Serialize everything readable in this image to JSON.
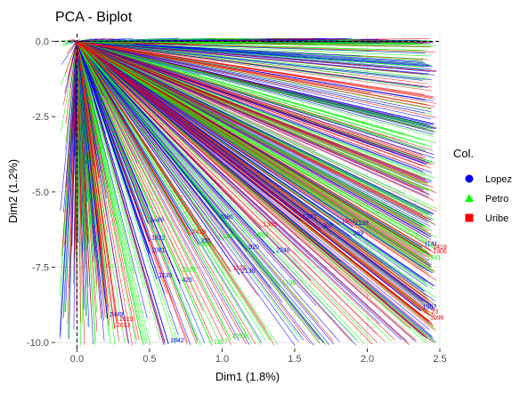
{
  "chart_data": {
    "type": "scatter",
    "title": "PCA - Biplot",
    "xlabel": "Dim1 (1.8%)",
    "ylabel": "Dim2 (1.2%)",
    "xlim": [
      -0.15,
      2.5
    ],
    "ylim": [
      -10.2,
      0.25
    ],
    "x_ticks": [
      0.0,
      0.5,
      1.0,
      1.5,
      2.0,
      2.5
    ],
    "x_tick_labels": [
      "0.0",
      "0.5",
      "1.0",
      "1.5",
      "2.0",
      "2.5"
    ],
    "y_ticks": [
      0.0,
      -2.5,
      -5.0,
      -7.5,
      -10.0
    ],
    "y_tick_labels": [
      "0.0",
      "-2.5",
      "-5.0",
      "-7.5",
      "-10.0"
    ],
    "grid": true,
    "reference_lines": {
      "x": 0,
      "y": 0,
      "style": "dashed"
    },
    "legend": {
      "title": "Col.",
      "position": "right",
      "entries": [
        {
          "label": "Lopez",
          "color": "#0000ff",
          "shape": "circle"
        },
        {
          "label": "Petro",
          "color": "#00ff00",
          "shape": "triangle"
        },
        {
          "label": "Uribe",
          "color": "#ff0000",
          "shape": "square"
        }
      ]
    },
    "series": [
      {
        "name": "Lopez",
        "color": "#0000ff",
        "points": [
          {
            "label": "1997",
            "x": 2.37,
            "y": -8.95
          },
          {
            "label": "1141",
            "x": 2.38,
            "y": -6.85
          },
          {
            "label": "2130",
            "x": 1.12,
            "y": -7.75
          },
          {
            "label": "1139",
            "x": 0.55,
            "y": -7.9
          },
          {
            "label": "425",
            "x": 0.71,
            "y": -8.05
          },
          {
            "label": "1822",
            "x": 0.5,
            "y": -6.65
          },
          {
            "label": "1081",
            "x": 0.5,
            "y": -7.05
          },
          {
            "label": "920",
            "x": 1.17,
            "y": -6.95
          },
          {
            "label": "389",
            "x": 1.89,
            "y": -6.5
          },
          {
            "label": "2246",
            "x": 1.36,
            "y": -7.05
          },
          {
            "label": "2449",
            "x": 0.21,
            "y": -9.2
          },
          {
            "label": "1842",
            "x": 0.63,
            "y": -10.05
          },
          {
            "label": "2139",
            "x": 1.9,
            "y": -6.15
          },
          {
            "label": "1283",
            "x": 1.54,
            "y": -5.95
          },
          {
            "label": "907",
            "x": 1.68,
            "y": -6.25
          },
          {
            "label": "2086",
            "x": 0.97,
            "y": -5.95
          },
          {
            "label": "355",
            "x": 0.84,
            "y": -6.75
          },
          {
            "label": "1446",
            "x": 0.49,
            "y": -6.05
          }
        ]
      },
      {
        "name": "Petro",
        "color": "#00ff00",
        "points": [
          {
            "label": "1796",
            "x": 1.4,
            "y": -8.15
          },
          {
            "label": "2265",
            "x": 1.06,
            "y": -9.9
          },
          {
            "label": "1207",
            "x": 0.93,
            "y": -10.1
          },
          {
            "label": "2526",
            "x": 0.71,
            "y": -7.7
          },
          {
            "label": "1841",
            "x": 2.4,
            "y": -7.3
          },
          {
            "label": "1369",
            "x": 0.99,
            "y": -6.6
          },
          {
            "label": "1900",
            "x": 0.82,
            "y": -6.85
          },
          {
            "label": "1588",
            "x": 1.21,
            "y": -6.55
          }
        ]
      },
      {
        "name": "Uribe",
        "color": "#ff0000",
        "points": [
          {
            "label": "23",
            "x": 2.43,
            "y": -9.1
          },
          {
            "label": "1096",
            "x": 2.42,
            "y": -9.3
          },
          {
            "label": "1906",
            "x": 2.44,
            "y": -7.1
          },
          {
            "label": "1418",
            "x": 2.44,
            "y": -6.95
          },
          {
            "label": "1123",
            "x": 1.06,
            "y": -7.65
          },
          {
            "label": "2019",
            "x": 0.28,
            "y": -9.35
          },
          {
            "label": "2419",
            "x": 0.78,
            "y": -6.45
          },
          {
            "label": "1503",
            "x": 1.81,
            "y": -6.1
          },
          {
            "label": "2033",
            "x": 0.26,
            "y": -9.55
          },
          {
            "label": "1305",
            "x": 1.27,
            "y": -6.2
          }
        ]
      }
    ]
  }
}
